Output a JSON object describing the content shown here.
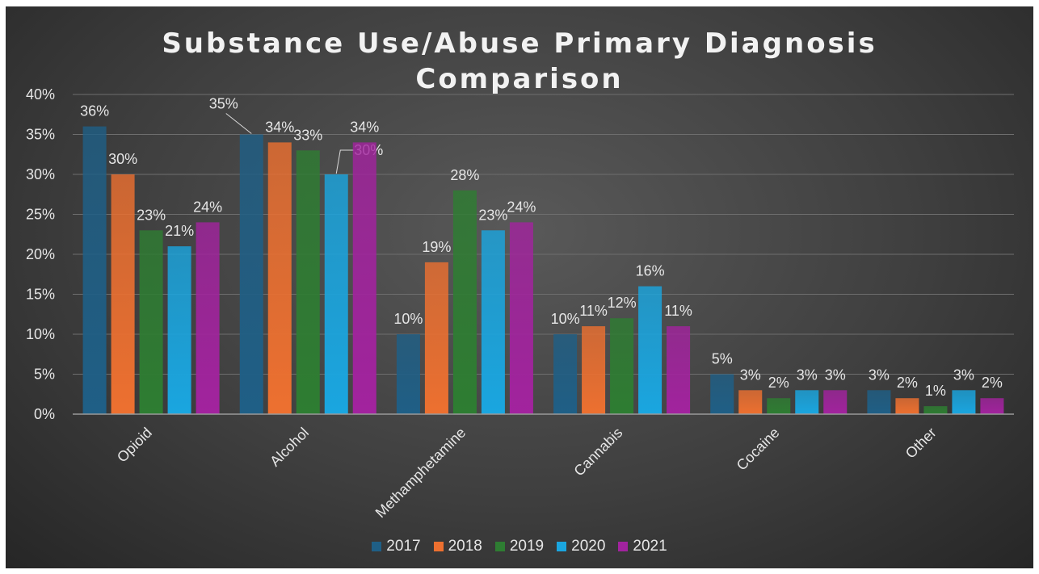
{
  "chart_data": {
    "type": "bar",
    "title_lines": [
      "Substance Use/Abuse Primary Diagnosis",
      "Comparison"
    ],
    "categories": [
      "Opioid",
      "Alcohol",
      "Methamphetamine",
      "Cannabis",
      "Cocaine",
      "Other"
    ],
    "series": [
      {
        "name": "2017",
        "color": "#1f5f86",
        "values": [
          36,
          35,
          10,
          10,
          5,
          3
        ]
      },
      {
        "name": "2018",
        "color": "#ed7030",
        "values": [
          30,
          34,
          19,
          11,
          3,
          2
        ]
      },
      {
        "name": "2019",
        "color": "#2e7d32",
        "values": [
          23,
          33,
          28,
          12,
          2,
          1
        ]
      },
      {
        "name": "2020",
        "color": "#1aa6e0",
        "values": [
          21,
          30,
          23,
          16,
          3,
          3
        ]
      },
      {
        "name": "2021",
        "color": "#a2239e",
        "values": [
          24,
          34,
          24,
          11,
          3,
          2
        ]
      }
    ],
    "data_labels": [
      [
        "36%",
        "35%",
        "10%",
        "10%",
        "5%",
        "3%"
      ],
      [
        "30%",
        "34%",
        "19%",
        "11%",
        "3%",
        "2%"
      ],
      [
        "23%",
        "33%",
        "28%",
        "12%",
        "2%",
        "1%"
      ],
      [
        "21%",
        "30%",
        "23%",
        "16%",
        "3%",
        "3%"
      ],
      [
        "24%",
        "34%",
        "24%",
        "11%",
        "3%",
        "2%"
      ]
    ],
    "y_ticks": [
      "0%",
      "5%",
      "10%",
      "15%",
      "20%",
      "25%",
      "30%",
      "35%",
      "40%"
    ],
    "ylim": [
      0,
      40
    ],
    "grid": true,
    "legend_position": "bottom"
  }
}
